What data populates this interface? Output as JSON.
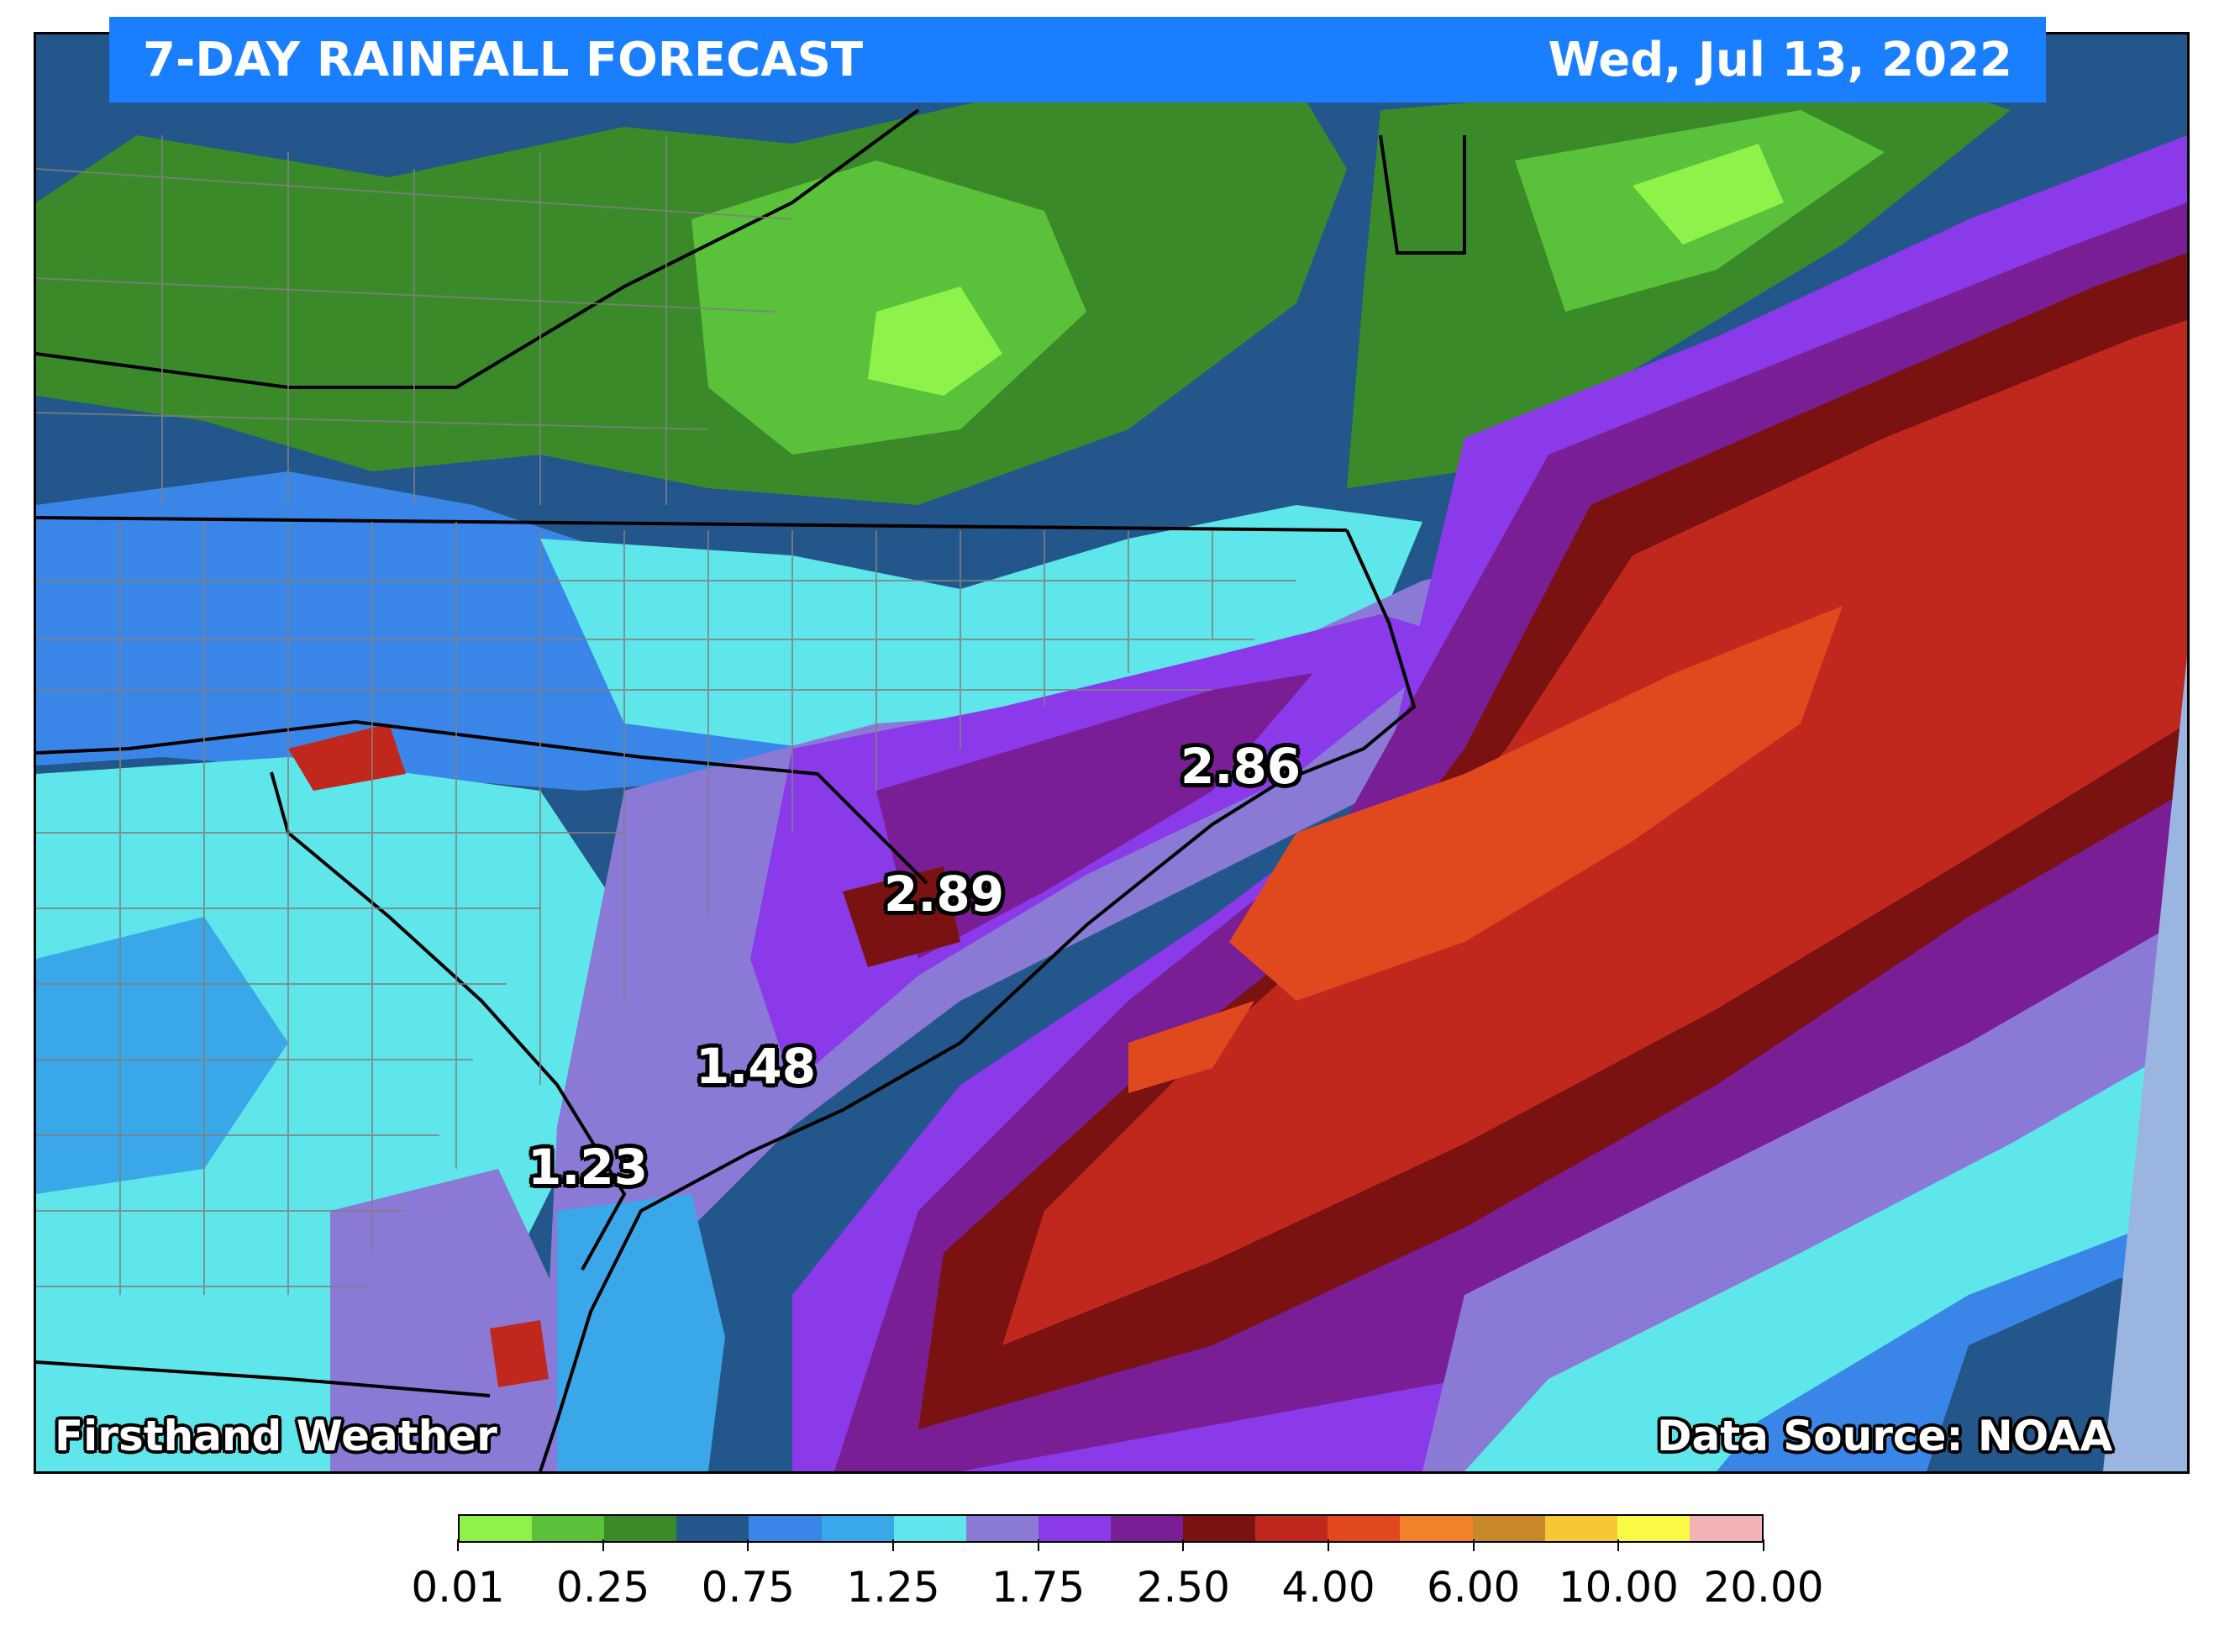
{
  "header": {
    "title": "7-DAY RAINFALL FORECAST",
    "date": "Wed, Jul 13, 2022"
  },
  "map": {
    "labels": [
      "2.86",
      "2.89",
      "1.48",
      "1.23"
    ],
    "branding": "Firsthand Weather",
    "source": "Data Source: NOAA"
  },
  "legend": {
    "colors": [
      "#8ef24a",
      "#5ac23a",
      "#3a8a2a",
      "#23568a",
      "#3a86e8",
      "#3aa8e8",
      "#5ee6ea",
      "#8a7ad6",
      "#8a3ae8",
      "#7a1e96",
      "#7a1212",
      "#c0281e",
      "#e0481e",
      "#f2822a",
      "#c8882a",
      "#f6c838",
      "#fafa46",
      "#f2b2b8"
    ],
    "tick_labels": [
      "0.01",
      "0.25",
      "0.75",
      "1.25",
      "1.75",
      "2.50",
      "4.00",
      "6.00",
      "10.00",
      "20.00"
    ]
  },
  "colors": {
    "title_bar": "#1a7fff",
    "map_background": "#2a5a8c"
  }
}
